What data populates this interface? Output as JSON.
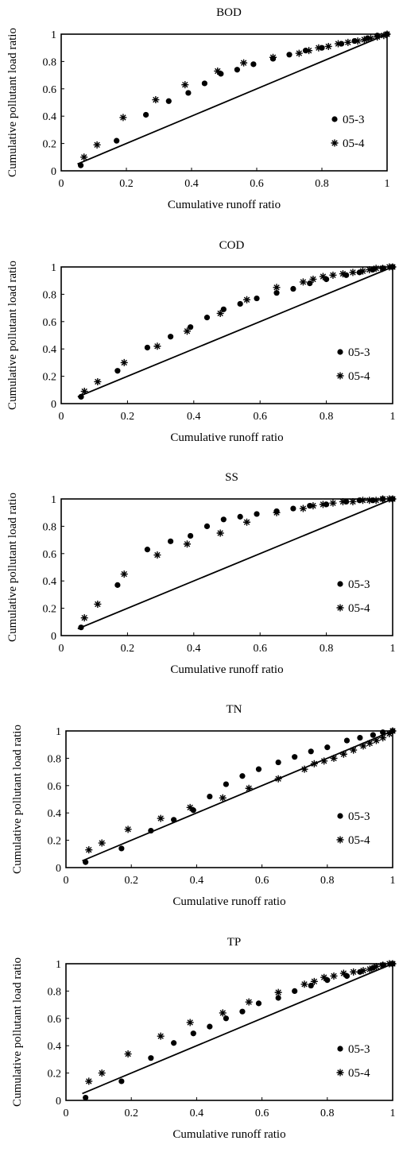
{
  "chart_data": [
    {
      "type": "scatter",
      "title": "BOD",
      "xlabel": "Cumulative runoff ratio",
      "ylabel": "Cumulative pollutant load ratio",
      "xlim": [
        0,
        1
      ],
      "ylim": [
        0,
        1
      ],
      "xticks": [
        "0",
        "0.2",
        "0.4",
        "0.6",
        "0.8",
        "1"
      ],
      "yticks": [
        "0",
        "0.2",
        "0.4",
        "0.6",
        "0.8",
        "1"
      ],
      "grid": false,
      "legend_position": "right",
      "reference_line": "y = x",
      "series": [
        {
          "name": "05-3",
          "marker": "dot",
          "x": [
            0.06,
            0.17,
            0.26,
            0.33,
            0.39,
            0.44,
            0.49,
            0.54,
            0.59,
            0.65,
            0.7,
            0.75,
            0.8,
            0.86,
            0.9,
            0.94,
            0.97,
            1.0
          ],
          "y": [
            0.04,
            0.22,
            0.41,
            0.51,
            0.57,
            0.64,
            0.71,
            0.74,
            0.78,
            0.82,
            0.85,
            0.88,
            0.9,
            0.93,
            0.95,
            0.97,
            0.99,
            1.0
          ]
        },
        {
          "name": "05-4",
          "marker": "star",
          "x": [
            0.07,
            0.11,
            0.19,
            0.29,
            0.38,
            0.48,
            0.56,
            0.65,
            0.73,
            0.76,
            0.79,
            0.82,
            0.85,
            0.88,
            0.91,
            0.93,
            0.95,
            0.97,
            0.99,
            1.0
          ],
          "y": [
            0.1,
            0.19,
            0.39,
            0.52,
            0.63,
            0.73,
            0.79,
            0.83,
            0.86,
            0.88,
            0.9,
            0.91,
            0.93,
            0.94,
            0.95,
            0.96,
            0.97,
            0.98,
            0.99,
            1.0
          ]
        }
      ]
    },
    {
      "type": "scatter",
      "title": "COD",
      "xlabel": "Cumulative runoff ratio",
      "ylabel": "Cumulative pollutant load ratio",
      "xlim": [
        0,
        1
      ],
      "ylim": [
        0,
        1
      ],
      "xticks": [
        "0",
        "0.2",
        "0.4",
        "0.6",
        "0.8",
        "1"
      ],
      "yticks": [
        "0",
        "0.2",
        "0.4",
        "0.6",
        "0.8",
        "1"
      ],
      "grid": false,
      "legend_position": "right",
      "reference_line": "y = x",
      "series": [
        {
          "name": "05-3",
          "marker": "dot",
          "x": [
            0.06,
            0.17,
            0.26,
            0.33,
            0.39,
            0.44,
            0.49,
            0.54,
            0.59,
            0.65,
            0.7,
            0.75,
            0.8,
            0.86,
            0.9,
            0.94,
            0.97,
            1.0
          ],
          "y": [
            0.05,
            0.24,
            0.41,
            0.49,
            0.56,
            0.63,
            0.69,
            0.73,
            0.77,
            0.81,
            0.84,
            0.88,
            0.91,
            0.94,
            0.96,
            0.98,
            0.99,
            1.0
          ]
        },
        {
          "name": "05-4",
          "marker": "star",
          "x": [
            0.07,
            0.11,
            0.19,
            0.29,
            0.38,
            0.48,
            0.56,
            0.65,
            0.73,
            0.76,
            0.79,
            0.82,
            0.85,
            0.88,
            0.91,
            0.93,
            0.95,
            0.97,
            0.99,
            1.0
          ],
          "y": [
            0.09,
            0.16,
            0.3,
            0.42,
            0.53,
            0.66,
            0.76,
            0.85,
            0.89,
            0.91,
            0.93,
            0.94,
            0.95,
            0.96,
            0.97,
            0.98,
            0.99,
            0.99,
            1.0,
            1.0
          ]
        }
      ]
    },
    {
      "type": "scatter",
      "title": "SS",
      "xlabel": "Cumulative runoff ratio",
      "ylabel": "Cumulative pollutant load ratio",
      "xlim": [
        0,
        1
      ],
      "ylim": [
        0,
        1
      ],
      "xticks": [
        "0",
        "0.2",
        "0.4",
        "0.6",
        "0.8",
        "1"
      ],
      "yticks": [
        "0",
        "0.2",
        "0.4",
        "0.6",
        "0.8",
        "1"
      ],
      "grid": false,
      "legend_position": "right",
      "reference_line": "y = x",
      "series": [
        {
          "name": "05-3",
          "marker": "dot",
          "x": [
            0.06,
            0.17,
            0.26,
            0.33,
            0.39,
            0.44,
            0.49,
            0.54,
            0.59,
            0.65,
            0.7,
            0.75,
            0.8,
            0.86,
            0.9,
            0.94,
            0.97,
            1.0
          ],
          "y": [
            0.06,
            0.37,
            0.63,
            0.69,
            0.73,
            0.8,
            0.85,
            0.87,
            0.89,
            0.91,
            0.93,
            0.95,
            0.96,
            0.98,
            0.99,
            0.99,
            1.0,
            1.0
          ]
        },
        {
          "name": "05-4",
          "marker": "star",
          "x": [
            0.07,
            0.11,
            0.19,
            0.29,
            0.38,
            0.48,
            0.56,
            0.65,
            0.73,
            0.76,
            0.79,
            0.82,
            0.85,
            0.88,
            0.91,
            0.93,
            0.95,
            0.97,
            0.99,
            1.0
          ],
          "y": [
            0.13,
            0.23,
            0.45,
            0.59,
            0.67,
            0.75,
            0.83,
            0.9,
            0.93,
            0.95,
            0.96,
            0.97,
            0.98,
            0.98,
            0.99,
            0.99,
            0.99,
            1.0,
            1.0,
            1.0
          ]
        }
      ]
    },
    {
      "type": "scatter",
      "title": "TN",
      "xlabel": "Cumulative runoff ratio",
      "ylabel": "Cumulative pollutant load ratio",
      "xlim": [
        0,
        1
      ],
      "ylim": [
        0,
        1
      ],
      "xticks": [
        "0",
        "0.2",
        "0.4",
        "0.6",
        "0.8",
        "1"
      ],
      "yticks": [
        "0",
        "0.2",
        "0.4",
        "0.6",
        "0.8",
        "1"
      ],
      "grid": false,
      "legend_position": "right",
      "reference_line": "y = x",
      "series": [
        {
          "name": "05-3",
          "marker": "dot",
          "x": [
            0.06,
            0.17,
            0.26,
            0.33,
            0.39,
            0.44,
            0.49,
            0.54,
            0.59,
            0.65,
            0.7,
            0.75,
            0.8,
            0.86,
            0.9,
            0.94,
            0.97,
            1.0
          ],
          "y": [
            0.04,
            0.14,
            0.27,
            0.35,
            0.42,
            0.52,
            0.61,
            0.67,
            0.72,
            0.77,
            0.81,
            0.85,
            0.88,
            0.93,
            0.95,
            0.97,
            0.99,
            1.0
          ]
        },
        {
          "name": "05-4",
          "marker": "star",
          "x": [
            0.07,
            0.11,
            0.19,
            0.29,
            0.38,
            0.48,
            0.56,
            0.65,
            0.73,
            0.76,
            0.79,
            0.82,
            0.85,
            0.88,
            0.91,
            0.93,
            0.95,
            0.97,
            0.99,
            1.0
          ],
          "y": [
            0.13,
            0.18,
            0.28,
            0.36,
            0.44,
            0.51,
            0.58,
            0.65,
            0.72,
            0.76,
            0.78,
            0.8,
            0.83,
            0.86,
            0.89,
            0.91,
            0.93,
            0.95,
            0.98,
            1.0
          ]
        }
      ]
    },
    {
      "type": "scatter",
      "title": "TP",
      "xlabel": "Cumulative runoff ratio",
      "ylabel": "Cumulative pollutant load ratio",
      "xlim": [
        0,
        1
      ],
      "ylim": [
        0,
        1
      ],
      "xticks": [
        "0",
        "0.2",
        "0.4",
        "0.6",
        "0.8",
        "1"
      ],
      "yticks": [
        "0",
        "0.2",
        "0.4",
        "0.6",
        "0.8",
        "1"
      ],
      "grid": false,
      "legend_position": "right",
      "reference_line": "y = x",
      "series": [
        {
          "name": "05-3",
          "marker": "dot",
          "x": [
            0.06,
            0.17,
            0.26,
            0.33,
            0.39,
            0.44,
            0.49,
            0.54,
            0.59,
            0.65,
            0.7,
            0.75,
            0.8,
            0.86,
            0.9,
            0.94,
            0.97,
            1.0
          ],
          "y": [
            0.02,
            0.14,
            0.31,
            0.42,
            0.49,
            0.54,
            0.6,
            0.65,
            0.71,
            0.75,
            0.8,
            0.84,
            0.88,
            0.91,
            0.94,
            0.97,
            0.99,
            1.0
          ]
        },
        {
          "name": "05-4",
          "marker": "star",
          "x": [
            0.07,
            0.11,
            0.19,
            0.29,
            0.38,
            0.48,
            0.56,
            0.65,
            0.73,
            0.76,
            0.79,
            0.82,
            0.85,
            0.88,
            0.91,
            0.93,
            0.95,
            0.97,
            0.99,
            1.0
          ],
          "y": [
            0.14,
            0.2,
            0.34,
            0.47,
            0.57,
            0.64,
            0.72,
            0.79,
            0.85,
            0.87,
            0.9,
            0.91,
            0.93,
            0.94,
            0.95,
            0.96,
            0.98,
            0.99,
            1.0,
            1.0
          ]
        }
      ]
    }
  ]
}
